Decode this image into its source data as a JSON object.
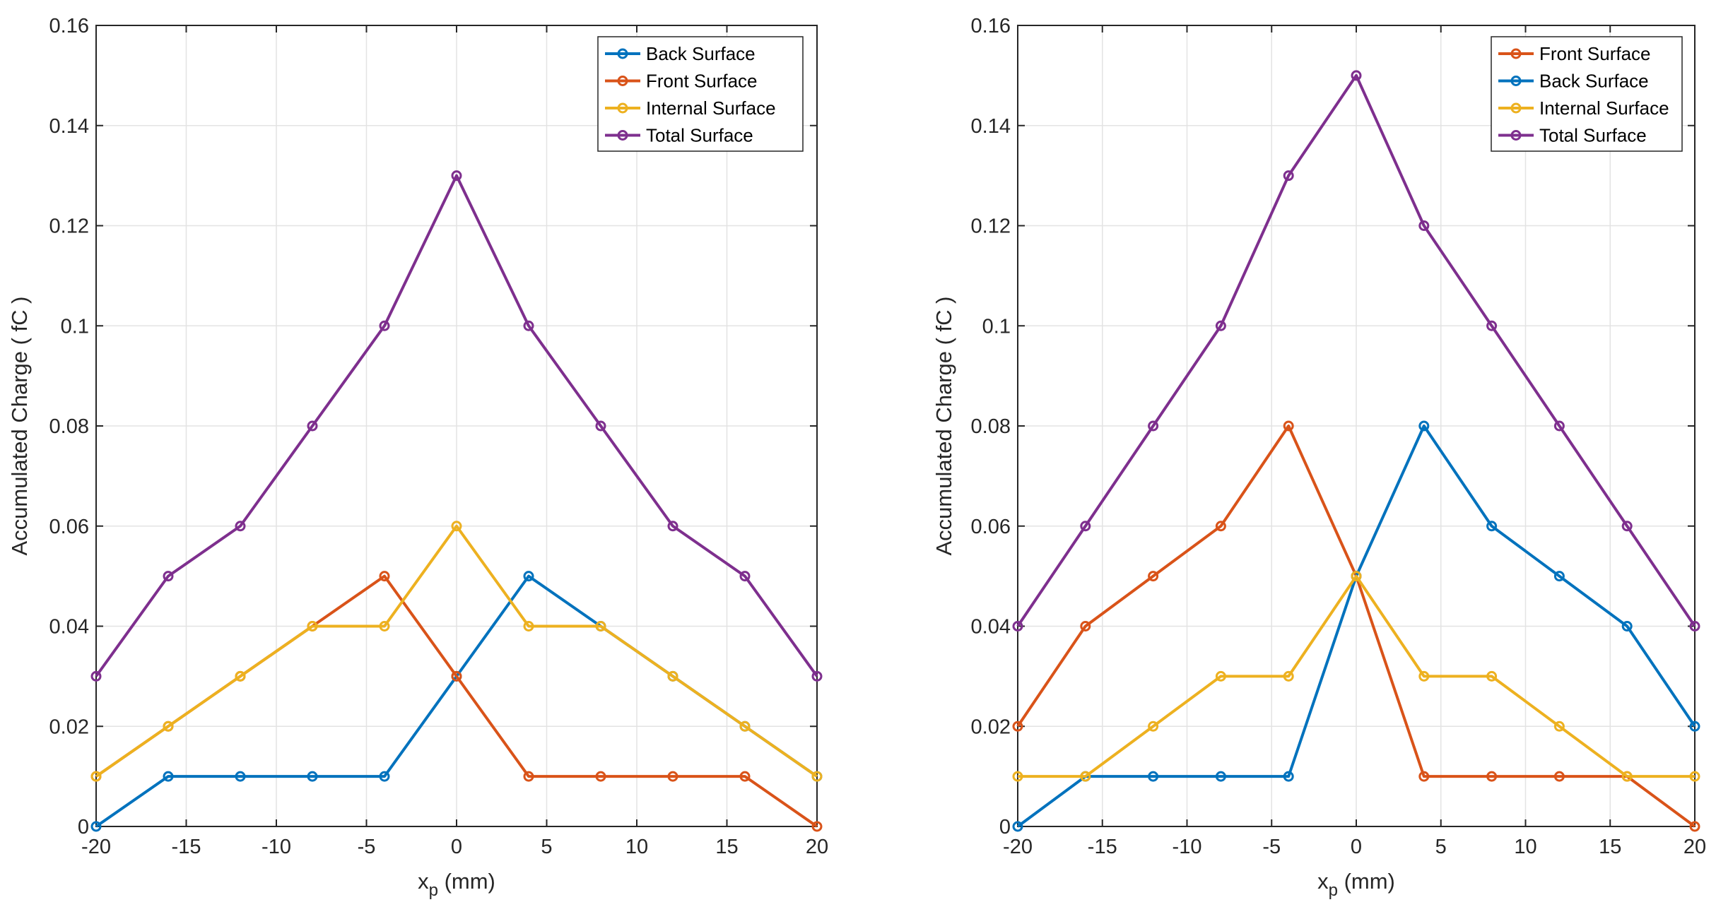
{
  "chart_data": [
    {
      "type": "line",
      "title": "",
      "xlabel": "x",
      "xlabel_sub": "p",
      "xlabel_unit": " (mm)",
      "ylabel": "Accumulated Charge ( fC )",
      "xlim": [
        -20,
        20
      ],
      "ylim": [
        0,
        0.16
      ],
      "xticks": [
        "-20",
        "-15",
        "-10",
        "-5",
        "0",
        "5",
        "10",
        "15",
        "20"
      ],
      "yticks": [
        "0",
        "0.02",
        "0.04",
        "0.06",
        "0.08",
        "0.1",
        "0.12",
        "0.14",
        "0.16"
      ],
      "grid": true,
      "legend_position": "top-right",
      "x": [
        -20,
        -16,
        -12,
        -8,
        -4,
        0,
        4,
        8,
        12,
        16,
        20
      ],
      "series": [
        {
          "name": "Back Surface",
          "color": "#0072BD",
          "values": [
            0,
            0.01,
            0.01,
            0.01,
            0.01,
            0.03,
            0.05,
            0.04,
            0.03,
            0.02,
            0.01
          ]
        },
        {
          "name": "Front Surface",
          "color": "#D95319",
          "values": [
            0.01,
            0.02,
            0.03,
            0.04,
            0.05,
            0.03,
            0.01,
            0.01,
            0.01,
            0.01,
            0
          ]
        },
        {
          "name": "Internal Surface",
          "color": "#EDB120",
          "values": [
            0.01,
            0.02,
            0.03,
            0.04,
            0.04,
            0.06,
            0.04,
            0.04,
            0.03,
            0.02,
            0.01
          ]
        },
        {
          "name": "Total Surface",
          "color": "#7E2F8E",
          "values": [
            0.03,
            0.05,
            0.06,
            0.08,
            0.1,
            0.13,
            0.1,
            0.08,
            0.06,
            0.05,
            0.03
          ]
        }
      ]
    },
    {
      "type": "line",
      "title": "",
      "xlabel": "x",
      "xlabel_sub": "p",
      "xlabel_unit": " (mm)",
      "ylabel": "Accumulated Charge ( fC )",
      "xlim": [
        -20,
        20
      ],
      "ylim": [
        0,
        0.16
      ],
      "xticks": [
        "-20",
        "-15",
        "-10",
        "-5",
        "0",
        "5",
        "10",
        "15",
        "20"
      ],
      "yticks": [
        "0",
        "0.02",
        "0.04",
        "0.06",
        "0.08",
        "0.1",
        "0.12",
        "0.14",
        "0.16"
      ],
      "grid": true,
      "legend_position": "top-right",
      "x": [
        -20,
        -16,
        -12,
        -8,
        -4,
        0,
        4,
        8,
        12,
        16,
        20
      ],
      "series": [
        {
          "name": "Front Surface",
          "color": "#D95319",
          "values": [
            0.02,
            0.04,
            0.05,
            0.06,
            0.08,
            0.05,
            0.01,
            0.01,
            0.01,
            0.01,
            0
          ]
        },
        {
          "name": "Back Surface",
          "color": "#0072BD",
          "values": [
            0,
            0.01,
            0.01,
            0.01,
            0.01,
            0.05,
            0.08,
            0.06,
            0.05,
            0.04,
            0.02
          ]
        },
        {
          "name": "Internal Surface",
          "color": "#EDB120",
          "values": [
            0.01,
            0.01,
            0.02,
            0.03,
            0.03,
            0.05,
            0.03,
            0.03,
            0.02,
            0.01,
            0.01
          ]
        },
        {
          "name": "Total Surface",
          "color": "#7E2F8E",
          "values": [
            0.04,
            0.06,
            0.08,
            0.1,
            0.13,
            0.15,
            0.12,
            0.1,
            0.08,
            0.06,
            0.04
          ]
        }
      ]
    }
  ]
}
